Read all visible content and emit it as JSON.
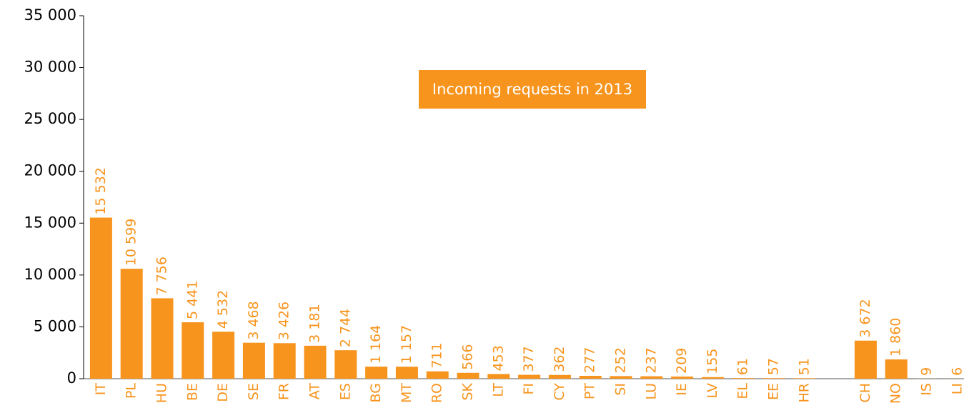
{
  "chart_data": {
    "type": "bar",
    "title": "Incoming requests in 2013",
    "categories": [
      "IT",
      "PL",
      "HU",
      "BE",
      "DE",
      "SE",
      "FR",
      "AT",
      "ES",
      "BG",
      "MT",
      "RO",
      "SK",
      "LT",
      "FI",
      "CY",
      "PT",
      "SI",
      "LU",
      "IE",
      "LV",
      "EL",
      "EE",
      "HR",
      null,
      "CH",
      "NO",
      "IS",
      "LI"
    ],
    "values": [
      15532,
      10599,
      7756,
      5441,
      4532,
      3468,
      3426,
      3181,
      2744,
      1164,
      1157,
      711,
      566,
      453,
      377,
      362,
      277,
      252,
      237,
      209,
      155,
      61,
      57,
      51,
      null,
      3672,
      1860,
      9,
      6
    ],
    "value_labels": [
      "15 532",
      "10 599",
      "7 756",
      "5 441",
      "4 532",
      "3 468",
      "3 426",
      "3 181",
      "2 744",
      "1 164",
      "1 157",
      "711",
      "566",
      "453",
      "377",
      "362",
      "277",
      "252",
      "237",
      "209",
      "155",
      "61",
      "57",
      "51",
      null,
      "3 672",
      "1 860",
      "9",
      "6"
    ],
    "color": "#f7941d",
    "ylim": [
      0,
      35000
    ],
    "yticks": [
      0,
      {
        "value": 5000,
        "label": "5 000"
      },
      {
        "value": 10000,
        "label": "10 000"
      },
      {
        "value": 15000,
        "label": "15 000"
      },
      {
        "value": 20000,
        "label": "20 000"
      },
      {
        "value": 25000,
        "label": "25 000"
      },
      {
        "value": 30000,
        "label": "30 000"
      },
      {
        "value": 35000,
        "label": "35 000"
      }
    ],
    "grid": false
  }
}
